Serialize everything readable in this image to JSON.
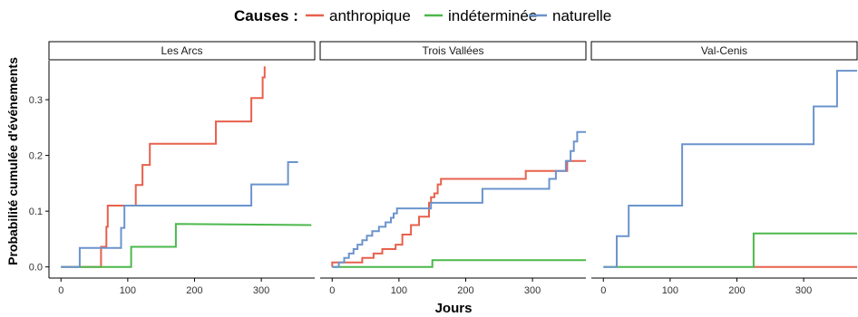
{
  "chart_data": {
    "type": "line",
    "subtype": "step",
    "xlabel": "Jours",
    "ylabel": "Probabilité cumulée d'événements",
    "xlim": [
      -18,
      380
    ],
    "ylim": [
      -0.02,
      0.37
    ],
    "x_ticks": [
      0,
      100,
      200,
      300
    ],
    "y_ticks": [
      0.0,
      0.1,
      0.2,
      0.3
    ],
    "y_tick_labels": [
      "0.0",
      "0.1",
      "0.2",
      "0.3"
    ],
    "legend": {
      "title": "Causes :",
      "position": "top",
      "entries": [
        {
          "label": "anthropique",
          "color": "#E8604C"
        },
        {
          "label": "indéterminée",
          "color": "#4CB84C"
        },
        {
          "label": "naturelle",
          "color": "#6B94CC"
        }
      ]
    },
    "panels": [
      {
        "title": "Les Arcs",
        "series": [
          {
            "cause": "anthropique",
            "color": "#E8604C",
            "points": [
              [
                0,
                0
              ],
              [
                60,
                0
              ],
              [
                60,
                0.036
              ],
              [
                68,
                0.036
              ],
              [
                68,
                0.072
              ],
              [
                70,
                0.072
              ],
              [
                70,
                0.11
              ],
              [
                85,
                0.11
              ],
              [
                85,
                0.11
              ],
              [
                112,
                0.11
              ],
              [
                112,
                0.147
              ],
              [
                122,
                0.147
              ],
              [
                122,
                0.183
              ],
              [
                133,
                0.183
              ],
              [
                133,
                0.221
              ],
              [
                145,
                0.221
              ],
              [
                145,
                0.221
              ],
              [
                232,
                0.221
              ],
              [
                232,
                0.261
              ],
              [
                285,
                0.261
              ],
              [
                285,
                0.303
              ],
              [
                302,
                0.303
              ],
              [
                302,
                0.34
              ],
              [
                305,
                0.34
              ],
              [
                305,
                0.36
              ]
            ]
          },
          {
            "cause": "indéterminée",
            "color": "#4CB84C",
            "points": [
              [
                0,
                0
              ],
              [
                105,
                0
              ],
              [
                105,
                0.036
              ],
              [
                172,
                0.036
              ],
              [
                172,
                0.077
              ],
              [
                375,
                0.075
              ]
            ]
          },
          {
            "cause": "naturelle",
            "color": "#6B94CC",
            "points": [
              [
                0,
                0
              ],
              [
                28,
                0
              ],
              [
                28,
                0.034
              ],
              [
                90,
                0.034
              ],
              [
                90,
                0.07
              ],
              [
                95,
                0.07
              ],
              [
                95,
                0.11
              ],
              [
                285,
                0.11
              ],
              [
                285,
                0.148
              ],
              [
                340,
                0.148
              ],
              [
                340,
                0.188
              ],
              [
                355,
                0.188
              ]
            ]
          }
        ]
      },
      {
        "title": "Trois Vallées",
        "series": [
          {
            "cause": "anthropique",
            "color": "#E8604C",
            "points": [
              [
                0,
                0
              ],
              [
                0,
                0.008
              ],
              [
                45,
                0.008
              ],
              [
                45,
                0.016
              ],
              [
                62,
                0.016
              ],
              [
                62,
                0.024
              ],
              [
                75,
                0.024
              ],
              [
                75,
                0.032
              ],
              [
                95,
                0.032
              ],
              [
                95,
                0.04
              ],
              [
                105,
                0.04
              ],
              [
                105,
                0.058
              ],
              [
                118,
                0.058
              ],
              [
                118,
                0.075
              ],
              [
                130,
                0.075
              ],
              [
                130,
                0.09
              ],
              [
                145,
                0.09
              ],
              [
                145,
                0.115
              ],
              [
                148,
                0.115
              ],
              [
                148,
                0.125
              ],
              [
                153,
                0.125
              ],
              [
                153,
                0.132
              ],
              [
                158,
                0.132
              ],
              [
                158,
                0.148
              ],
              [
                163,
                0.148
              ],
              [
                163,
                0.158
              ],
              [
                290,
                0.158
              ],
              [
                290,
                0.172
              ],
              [
                352,
                0.172
              ],
              [
                352,
                0.19
              ],
              [
                380,
                0.19
              ]
            ]
          },
          {
            "cause": "indéterminée",
            "color": "#4CB84C",
            "points": [
              [
                0,
                0
              ],
              [
                150,
                0
              ],
              [
                150,
                0.012
              ],
              [
                380,
                0.012
              ]
            ]
          },
          {
            "cause": "naturelle",
            "color": "#6B94CC",
            "points": [
              [
                0,
                0
              ],
              [
                10,
                0
              ],
              [
                10,
                0.008
              ],
              [
                18,
                0.008
              ],
              [
                18,
                0.016
              ],
              [
                25,
                0.016
              ],
              [
                25,
                0.024
              ],
              [
                32,
                0.024
              ],
              [
                32,
                0.032
              ],
              [
                38,
                0.032
              ],
              [
                38,
                0.04
              ],
              [
                45,
                0.04
              ],
              [
                45,
                0.048
              ],
              [
                52,
                0.048
              ],
              [
                52,
                0.056
              ],
              [
                60,
                0.056
              ],
              [
                60,
                0.064
              ],
              [
                70,
                0.064
              ],
              [
                70,
                0.072
              ],
              [
                80,
                0.072
              ],
              [
                80,
                0.08
              ],
              [
                88,
                0.08
              ],
              [
                88,
                0.088
              ],
              [
                92,
                0.088
              ],
              [
                92,
                0.096
              ],
              [
                97,
                0.096
              ],
              [
                97,
                0.105
              ],
              [
                148,
                0.105
              ],
              [
                148,
                0.115
              ],
              [
                225,
                0.115
              ],
              [
                225,
                0.14
              ],
              [
                325,
                0.14
              ],
              [
                325,
                0.158
              ],
              [
                335,
                0.158
              ],
              [
                335,
                0.172
              ],
              [
                350,
                0.172
              ],
              [
                350,
                0.19
              ],
              [
                357,
                0.19
              ],
              [
                357,
                0.208
              ],
              [
                362,
                0.208
              ],
              [
                362,
                0.225
              ],
              [
                367,
                0.225
              ],
              [
                367,
                0.242
              ],
              [
                380,
                0.242
              ]
            ]
          }
        ]
      },
      {
        "title": "Val-Cenis",
        "series": [
          {
            "cause": "anthropique",
            "color": "#E8604C",
            "points": [
              [
                225,
                0
              ],
              [
                380,
                0
              ]
            ]
          },
          {
            "cause": "indéterminée",
            "color": "#4CB84C",
            "points": [
              [
                0,
                0
              ],
              [
                225,
                0
              ],
              [
                225,
                0.06
              ],
              [
                380,
                0.06
              ]
            ]
          },
          {
            "cause": "naturelle",
            "color": "#6B94CC",
            "points": [
              [
                0,
                0
              ],
              [
                20,
                0
              ],
              [
                20,
                0.055
              ],
              [
                38,
                0.055
              ],
              [
                38,
                0.11
              ],
              [
                118,
                0.11
              ],
              [
                118,
                0.22
              ],
              [
                315,
                0.22
              ],
              [
                315,
                0.288
              ],
              [
                350,
                0.288
              ],
              [
                350,
                0.352
              ],
              [
                380,
                0.352
              ]
            ]
          }
        ]
      }
    ]
  }
}
